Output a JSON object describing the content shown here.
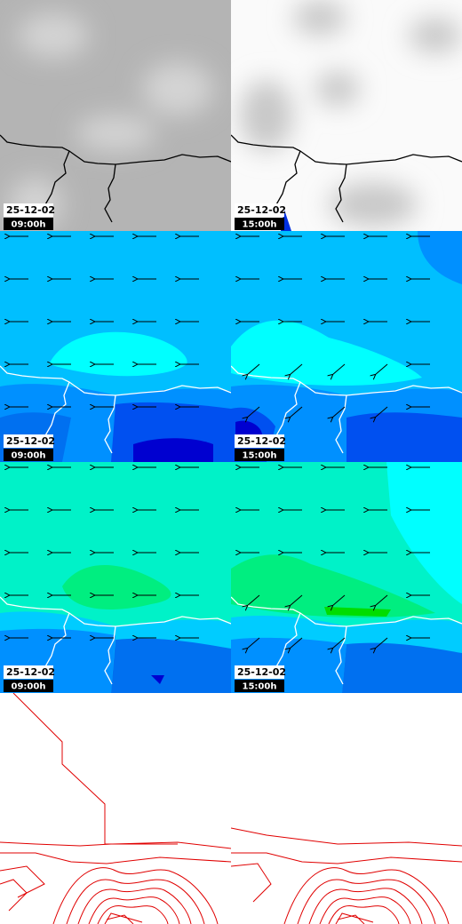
{
  "panels": [
    {
      "date": "25-12-02",
      "time": "09:00h"
    },
    {
      "date": "25-12-02",
      "time": "15:00h"
    },
    {
      "date": "25-12-02",
      "time": "09:00h"
    },
    {
      "date": "25-12-02",
      "time": "15:00h"
    },
    {
      "date": "25-12-02",
      "time": "09:00h"
    },
    {
      "date": "25-12-02",
      "time": "15:00h"
    }
  ]
}
